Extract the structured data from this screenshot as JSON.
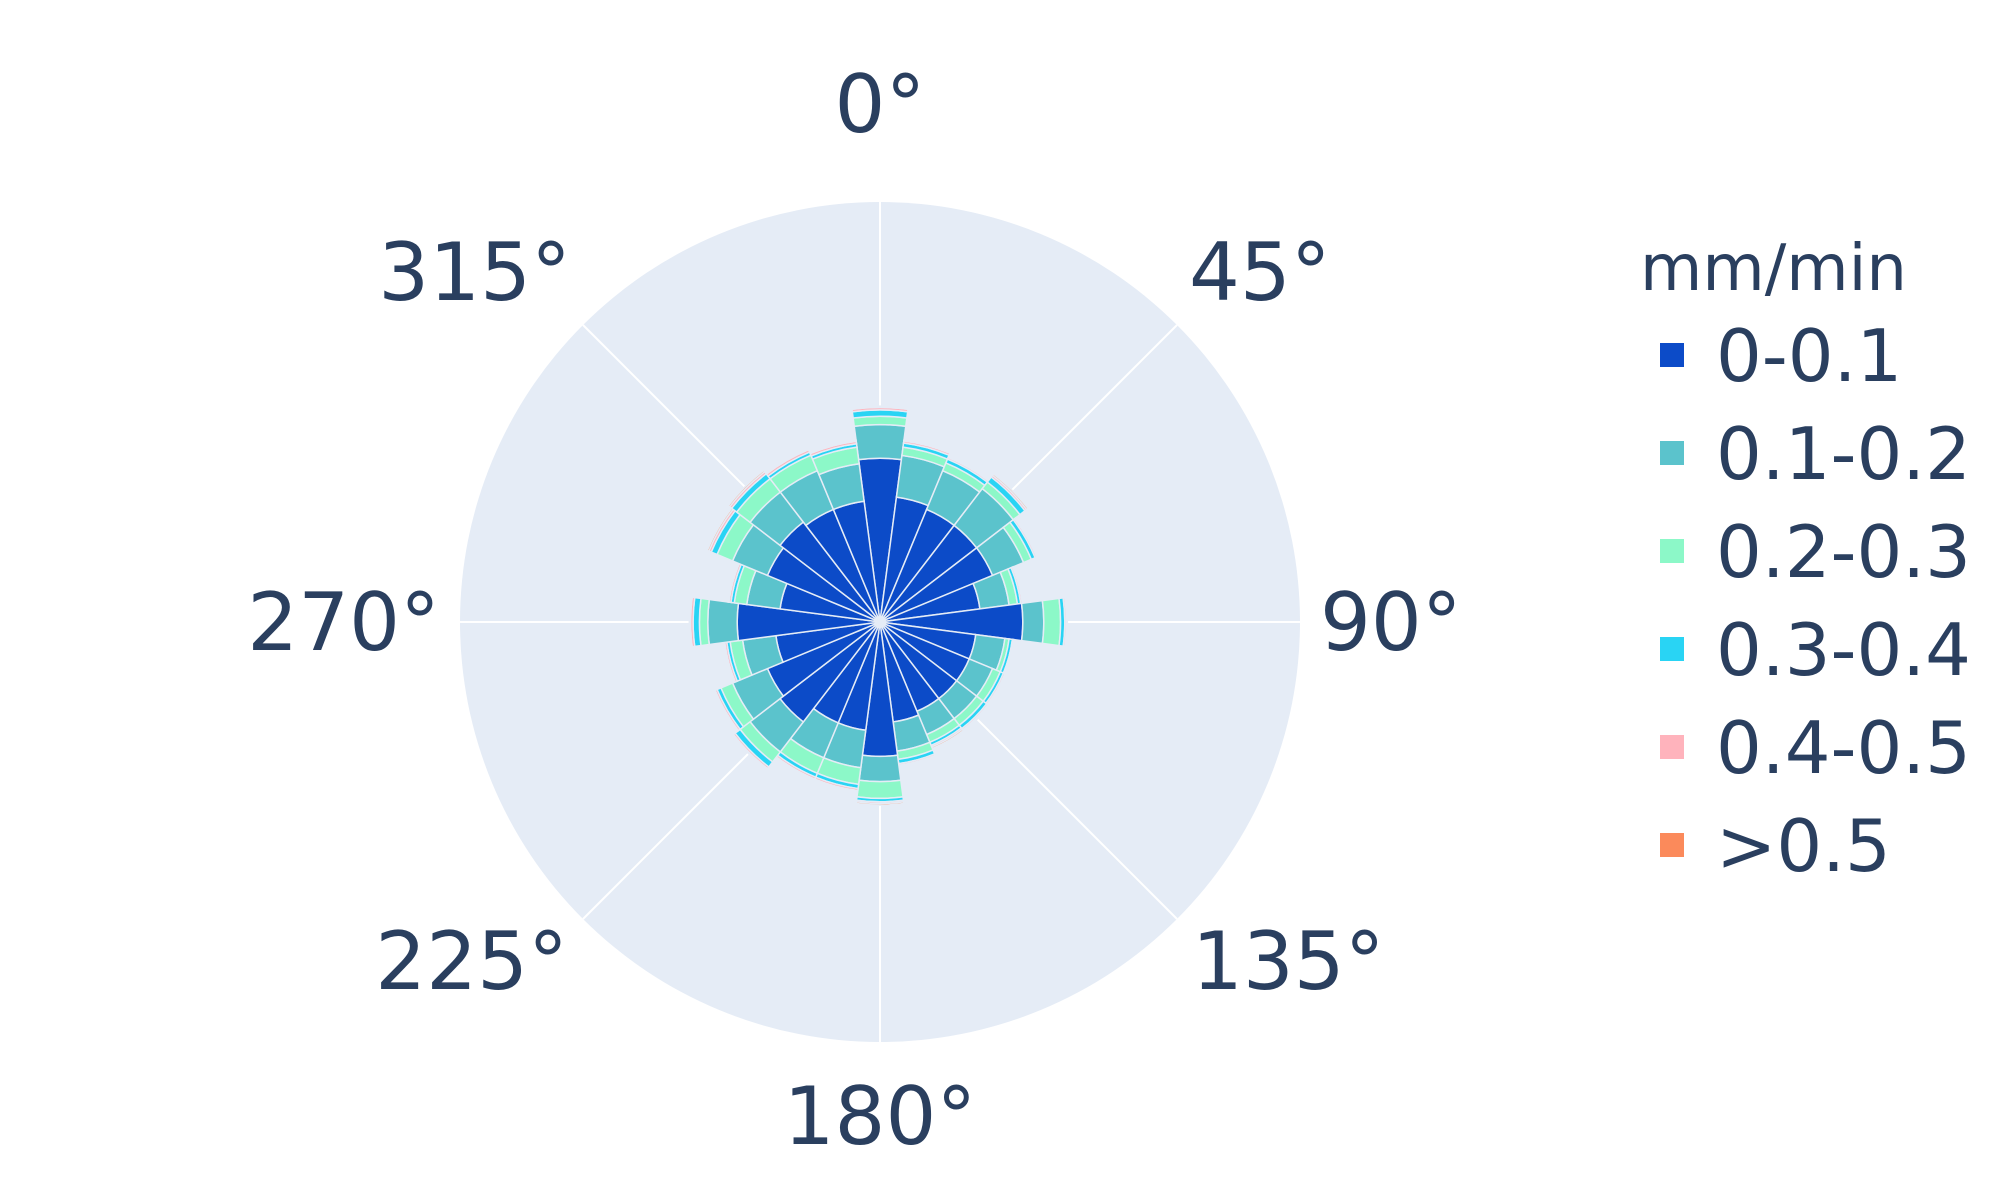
{
  "chart_data": {
    "type": "barpolar",
    "angular_axis": {
      "direction": "clockwise",
      "rotation": "0° at top",
      "ticks": [
        "0°",
        "45°",
        "90°",
        "135°",
        "180°",
        "225°",
        "270°",
        "315°"
      ]
    },
    "radial_axis": {
      "range": [
        0,
        1.0
      ],
      "showticklabels": false
    },
    "grid": true,
    "background_color": "#e5ecf6",
    "legend": {
      "title": "mm/min",
      "placement": "right"
    },
    "theta": [
      0,
      15,
      30,
      45,
      60,
      75,
      90,
      105,
      120,
      135,
      150,
      165,
      180,
      195,
      210,
      225,
      240,
      255,
      270,
      285,
      300,
      315,
      330,
      345
    ],
    "series": [
      {
        "name": "0-0.1",
        "color": "#0c4bc8",
        "values": [
          0.39,
          0.3,
          0.29,
          0.29,
          0.29,
          0.24,
          0.34,
          0.23,
          0.23,
          0.23,
          0.23,
          0.24,
          0.32,
          0.26,
          0.26,
          0.3,
          0.29,
          0.25,
          0.34,
          0.24,
          0.29,
          0.3,
          0.29,
          0.29
        ]
      },
      {
        "name": "0.1-0.2",
        "color": "#5bc3cc",
        "values": [
          0.08,
          0.1,
          0.1,
          0.11,
          0.08,
          0.07,
          0.05,
          0.07,
          0.06,
          0.06,
          0.06,
          0.07,
          0.06,
          0.09,
          0.09,
          0.09,
          0.09,
          0.08,
          0.07,
          0.08,
          0.09,
          0.09,
          0.1,
          0.09
        ]
      },
      {
        "name": "0.2-0.3",
        "color": "#8cf8c8",
        "values": [
          0.02,
          0.02,
          0.02,
          0.02,
          0.02,
          0.02,
          0.04,
          0.01,
          0.02,
          0.02,
          0.02,
          0.02,
          0.04,
          0.04,
          0.04,
          0.03,
          0.03,
          0.03,
          0.02,
          0.03,
          0.04,
          0.04,
          0.04,
          0.04
        ]
      },
      {
        "name": "0.3-0.4",
        "color": "#29d4f4",
        "values": [
          0.015,
          0.01,
          0.01,
          0.015,
          0.01,
          0.008,
          0.01,
          0.008,
          0.008,
          0.01,
          0.008,
          0.01,
          0.008,
          0.01,
          0.01,
          0.015,
          0.01,
          0.008,
          0.015,
          0.008,
          0.015,
          0.015,
          0.008,
          0.008
        ]
      },
      {
        "name": "0.4-0.5",
        "color": "#ffb3bc",
        "values": [
          0.006,
          0.005,
          0.004,
          0.005,
          0.004,
          0.004,
          0.004,
          0.003,
          0.004,
          0.004,
          0.004,
          0.004,
          0.004,
          0.005,
          0.005,
          0.005,
          0.005,
          0.005,
          0.006,
          0.005,
          0.006,
          0.006,
          0.006,
          0.006
        ]
      },
      {
        "name": ">0.5",
        "color": "#fb8a5b",
        "values": [
          0.003,
          0.002,
          0.002,
          0.004,
          0.003,
          0.002,
          0.002,
          0.002,
          0.002,
          0.003,
          0.004,
          0.003,
          0.004,
          0.003,
          0.002,
          0.003,
          0.003,
          0.003,
          0.003,
          0.003,
          0.004,
          0.004,
          0.002,
          0.003
        ]
      }
    ]
  }
}
